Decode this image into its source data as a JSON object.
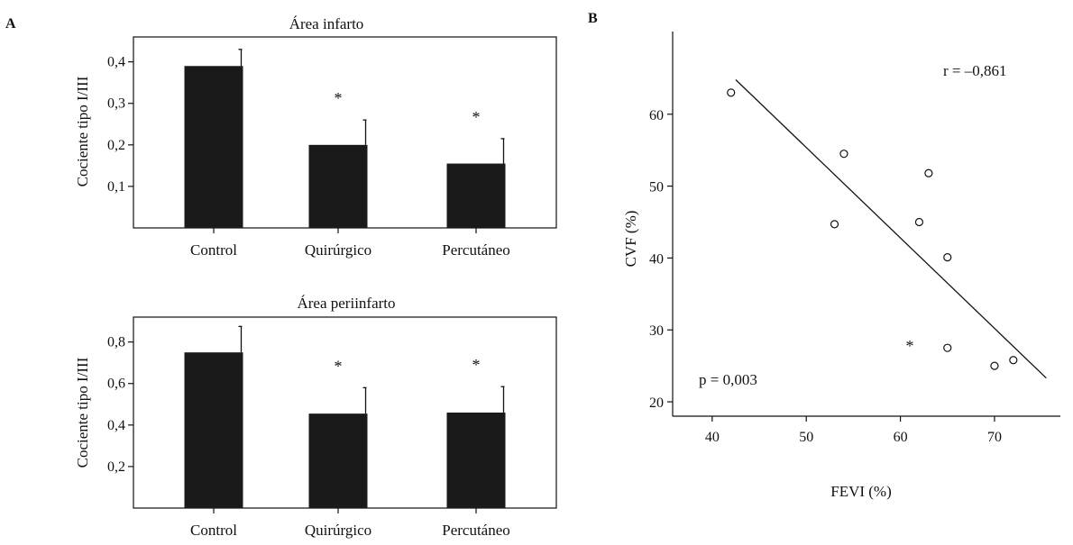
{
  "panels": {
    "a_letter": "A",
    "b_letter": "B"
  },
  "chart_data": [
    {
      "type": "bar",
      "title": "Área infarto",
      "xlabel": "",
      "ylabel": "Cociente tipo I/III",
      "categories": [
        "Control",
        "Quirúrgico",
        "Percutáneo"
      ],
      "values": [
        0.39,
        0.2,
        0.155
      ],
      "errors": [
        0.04,
        0.06,
        0.06
      ],
      "significance": [
        "",
        "*",
        "*"
      ],
      "ylim": [
        0,
        0.46
      ],
      "yticks": [
        0.1,
        0.2,
        0.3,
        0.4
      ],
      "ytick_labels": [
        "0,1",
        "0,2",
        "0,3",
        "0,4"
      ]
    },
    {
      "type": "bar",
      "title": "Área periinfarto",
      "xlabel": "",
      "ylabel": "Cociente tipo I/III",
      "categories": [
        "Control",
        "Quirúrgico",
        "Percutáneo"
      ],
      "values": [
        0.75,
        0.455,
        0.46
      ],
      "errors": [
        0.125,
        0.125,
        0.125
      ],
      "significance": [
        "",
        "*",
        "*"
      ],
      "ylim": [
        0,
        0.92
      ],
      "yticks": [
        0.2,
        0.4,
        0.6,
        0.8
      ],
      "ytick_labels": [
        "0,2",
        "0,4",
        "0,6",
        "0,8"
      ]
    },
    {
      "type": "scatter",
      "title": "",
      "xlabel": "FEVI (%)",
      "ylabel": "CVF (%)",
      "points": [
        {
          "x": 42,
          "y": 63
        },
        {
          "x": 53,
          "y": 44.7
        },
        {
          "x": 54,
          "y": 54.5
        },
        {
          "x": 62,
          "y": 45
        },
        {
          "x": 63,
          "y": 51.8
        },
        {
          "x": 65,
          "y": 40.1
        },
        {
          "x": 65,
          "y": 27.5
        },
        {
          "x": 70,
          "y": 25
        },
        {
          "x": 72,
          "y": 25.8
        }
      ],
      "fit_line": [
        {
          "x": 42.5,
          "y": 64.8
        },
        {
          "x": 75.5,
          "y": 23.3
        }
      ],
      "star": {
        "x": 61,
        "y": 28.5,
        "label": "*"
      },
      "annotations": {
        "r": "r = –0,861",
        "p": "p = 0,003"
      },
      "xlim": [
        35.8,
        77
      ],
      "ylim": [
        18,
        71.5
      ],
      "xticks": [
        40,
        50,
        60,
        70
      ],
      "yticks": [
        20,
        30,
        40,
        50,
        60
      ],
      "grid": false
    }
  ]
}
